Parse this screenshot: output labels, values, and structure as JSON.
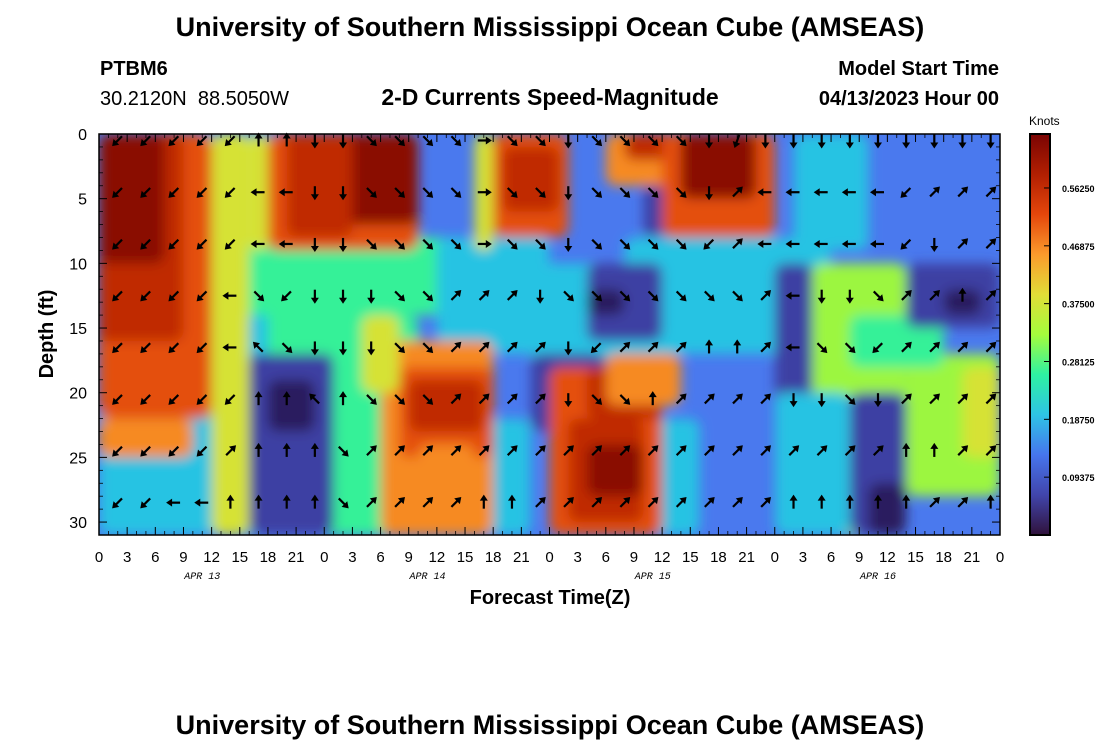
{
  "header": {
    "title": "University of Southern Mississippi Ocean Cube (AMSEAS)",
    "station_id": "PTBM6",
    "station_coords": "30.2120N  88.5050W",
    "chart_title": "2-D Currents Speed-Magnitude",
    "model_start_label": "Model Start Time",
    "model_start_value": "04/13/2023 Hour 00"
  },
  "footer": {
    "title": "University of Southern Mississippi Ocean Cube (AMSEAS)"
  },
  "chart_data": {
    "type": "heatmap",
    "title": "2-D Currents Speed-Magnitude",
    "xlabel": "Forecast Time(Z)",
    "ylabel": "Depth (ft)",
    "x_ticks": [
      "0",
      "3",
      "6",
      "9",
      "12",
      "15",
      "18",
      "21",
      "0",
      "3",
      "6",
      "9",
      "12",
      "15",
      "18",
      "21",
      "0",
      "3",
      "6",
      "9",
      "12",
      "15",
      "18",
      "21",
      "0",
      "3",
      "6",
      "9",
      "12",
      "15",
      "18",
      "21",
      "0"
    ],
    "day_labels": [
      "APR 13",
      "APR 14",
      "APR 15",
      "APR 16"
    ],
    "xlim_hours": [
      0,
      96
    ],
    "y_ticks": [
      0,
      5,
      10,
      15,
      20,
      25,
      30
    ],
    "ylim_ft": [
      0,
      31
    ],
    "colorbar": {
      "unit": "Knots",
      "ticks": [
        "0.56250",
        "0.46875",
        "0.37500",
        "0.28125",
        "0.18750",
        "0.09375"
      ],
      "tick_values": [
        0.5625,
        0.46875,
        0.375,
        0.28125,
        0.1875,
        0.09375
      ],
      "range": [
        0.0,
        0.65
      ]
    },
    "arrow_depths_ft": [
      0.5,
      4.5,
      8.5,
      12.5,
      16.5,
      20.5,
      24.5,
      28.5
    ],
    "arrow_hours": [
      2,
      5,
      8,
      11,
      14,
      17,
      20,
      23,
      26,
      29,
      32,
      35,
      38,
      41,
      44,
      47,
      50,
      53,
      56,
      59,
      62,
      65,
      68,
      71,
      74,
      77,
      80,
      83,
      86,
      89,
      92,
      95
    ],
    "arrow_directions_deg": [
      [
        225,
        225,
        225,
        225,
        225,
        0,
        0,
        180,
        180,
        135,
        135,
        135,
        135,
        90,
        135,
        135,
        180,
        135,
        135,
        135,
        135,
        180,
        200,
        180,
        180,
        180,
        180,
        180,
        180,
        180,
        180,
        180
      ],
      [
        225,
        225,
        225,
        225,
        225,
        270,
        270,
        180,
        180,
        135,
        135,
        135,
        135,
        90,
        135,
        135,
        180,
        135,
        135,
        135,
        135,
        180,
        45,
        270,
        270,
        270,
        270,
        270,
        225,
        45,
        45,
        45
      ],
      [
        225,
        225,
        225,
        225,
        225,
        270,
        270,
        180,
        180,
        135,
        135,
        135,
        135,
        90,
        135,
        135,
        180,
        135,
        135,
        135,
        135,
        225,
        45,
        270,
        270,
        270,
        270,
        270,
        225,
        180,
        45,
        45
      ],
      [
        225,
        225,
        225,
        225,
        270,
        135,
        225,
        180,
        180,
        180,
        135,
        135,
        45,
        45,
        45,
        180,
        135,
        135,
        135,
        135,
        135,
        135,
        135,
        45,
        270,
        180,
        180,
        135,
        45,
        45,
        0,
        45
      ],
      [
        225,
        225,
        225,
        225,
        270,
        315,
        135,
        180,
        180,
        180,
        135,
        135,
        45,
        45,
        45,
        45,
        180,
        225,
        45,
        45,
        45,
        0,
        0,
        45,
        270,
        135,
        135,
        225,
        45,
        45,
        45,
        45
      ],
      [
        225,
        225,
        225,
        225,
        225,
        0,
        0,
        315,
        0,
        135,
        135,
        135,
        45,
        45,
        45,
        45,
        180,
        135,
        135,
        0,
        45,
        45,
        45,
        45,
        180,
        180,
        135,
        180,
        45,
        45,
        45,
        45
      ],
      [
        225,
        225,
        225,
        225,
        45,
        0,
        0,
        0,
        135,
        45,
        45,
        45,
        45,
        45,
        45,
        45,
        45,
        45,
        45,
        45,
        45,
        45,
        45,
        45,
        45,
        45,
        45,
        45,
        0,
        0,
        45,
        45
      ],
      [
        225,
        225,
        270,
        270,
        0,
        0,
        0,
        0,
        135,
        45,
        45,
        45,
        45,
        0,
        0,
        45,
        45,
        45,
        45,
        45,
        45,
        45,
        45,
        45,
        0,
        0,
        0,
        0,
        0,
        45,
        45,
        0
      ]
    ]
  }
}
